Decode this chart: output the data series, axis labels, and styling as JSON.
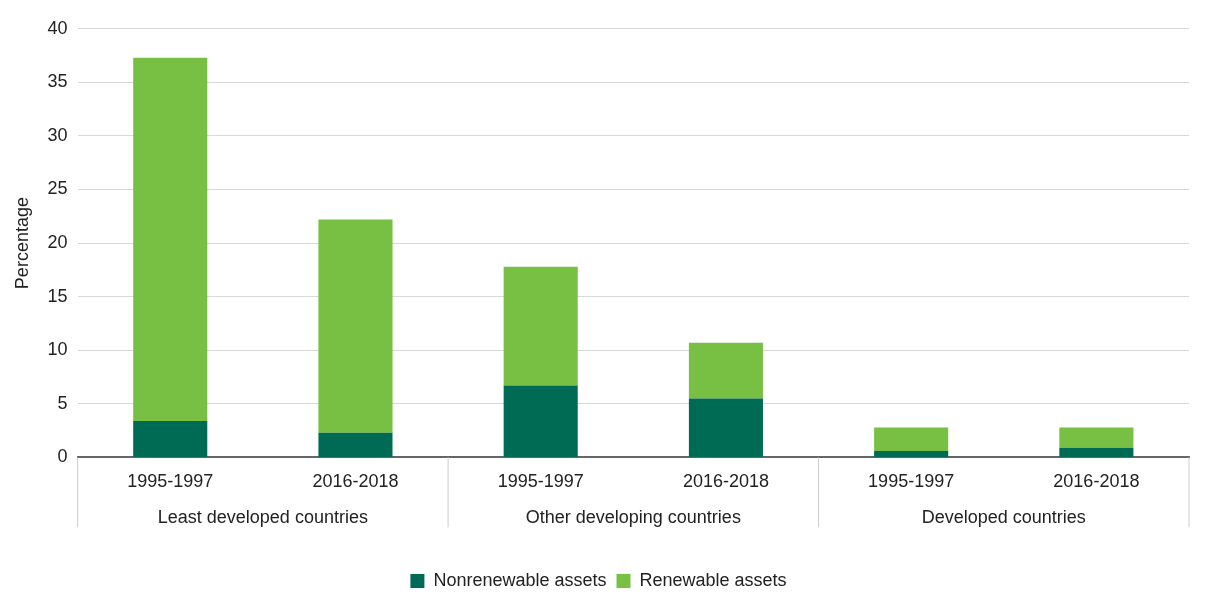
{
  "chart_data": {
    "type": "bar",
    "stacked": true,
    "ylabel": "Percentage",
    "categories": [
      "1995-1997",
      "2016-2018",
      "1995-1997",
      "2016-2018",
      "1995-1997",
      "2016-2018"
    ],
    "annotations": [
      "Least developed countries",
      "Other developing countries",
      "Developed countries"
    ],
    "series": [
      {
        "name": "Nonrenewable assets",
        "color": "#006b54",
        "values": [
          3.4,
          2.3,
          6.7,
          5.5,
          0.6,
          0.9
        ]
      },
      {
        "name": "Renewable assets",
        "color": "#77c043",
        "values": [
          33.9,
          19.9,
          11.1,
          5.2,
          2.2,
          1.9
        ]
      }
    ],
    "ylim": [
      0,
      40
    ],
    "yticks": [
      0,
      5,
      10,
      15,
      20,
      25,
      30,
      35,
      40
    ],
    "grid": "y",
    "legend": "bottom"
  }
}
